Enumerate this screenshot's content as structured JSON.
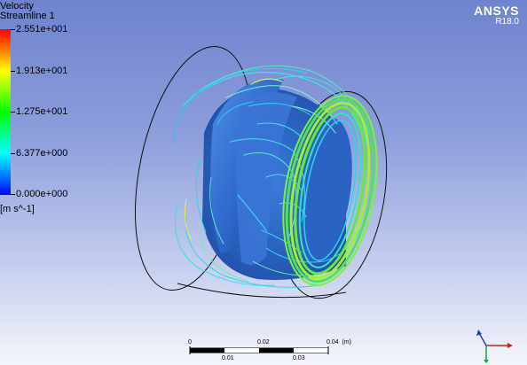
{
  "legend": {
    "variable": "Velocity",
    "object": "Streamline 1",
    "ticks": [
      "2.551e+001",
      "1.913e+001",
      "1.275e+001",
      "6.377e+000",
      "0.000e+000"
    ],
    "units": "[m s^-1]",
    "colors": [
      "#ff0000",
      "#ffff00",
      "#00ff00",
      "#00ffff",
      "#0000ff"
    ]
  },
  "logo": {
    "name": "ANSYS",
    "version": "R18.0"
  },
  "scale_bar": {
    "top_labels": [
      "0",
      "0.02",
      "0.04  (m)"
    ],
    "bottom_labels": [
      "0.01",
      "0.03"
    ]
  },
  "triad": {
    "axes": [
      "x-axis",
      "y-axis",
      "z-axis"
    ]
  }
}
